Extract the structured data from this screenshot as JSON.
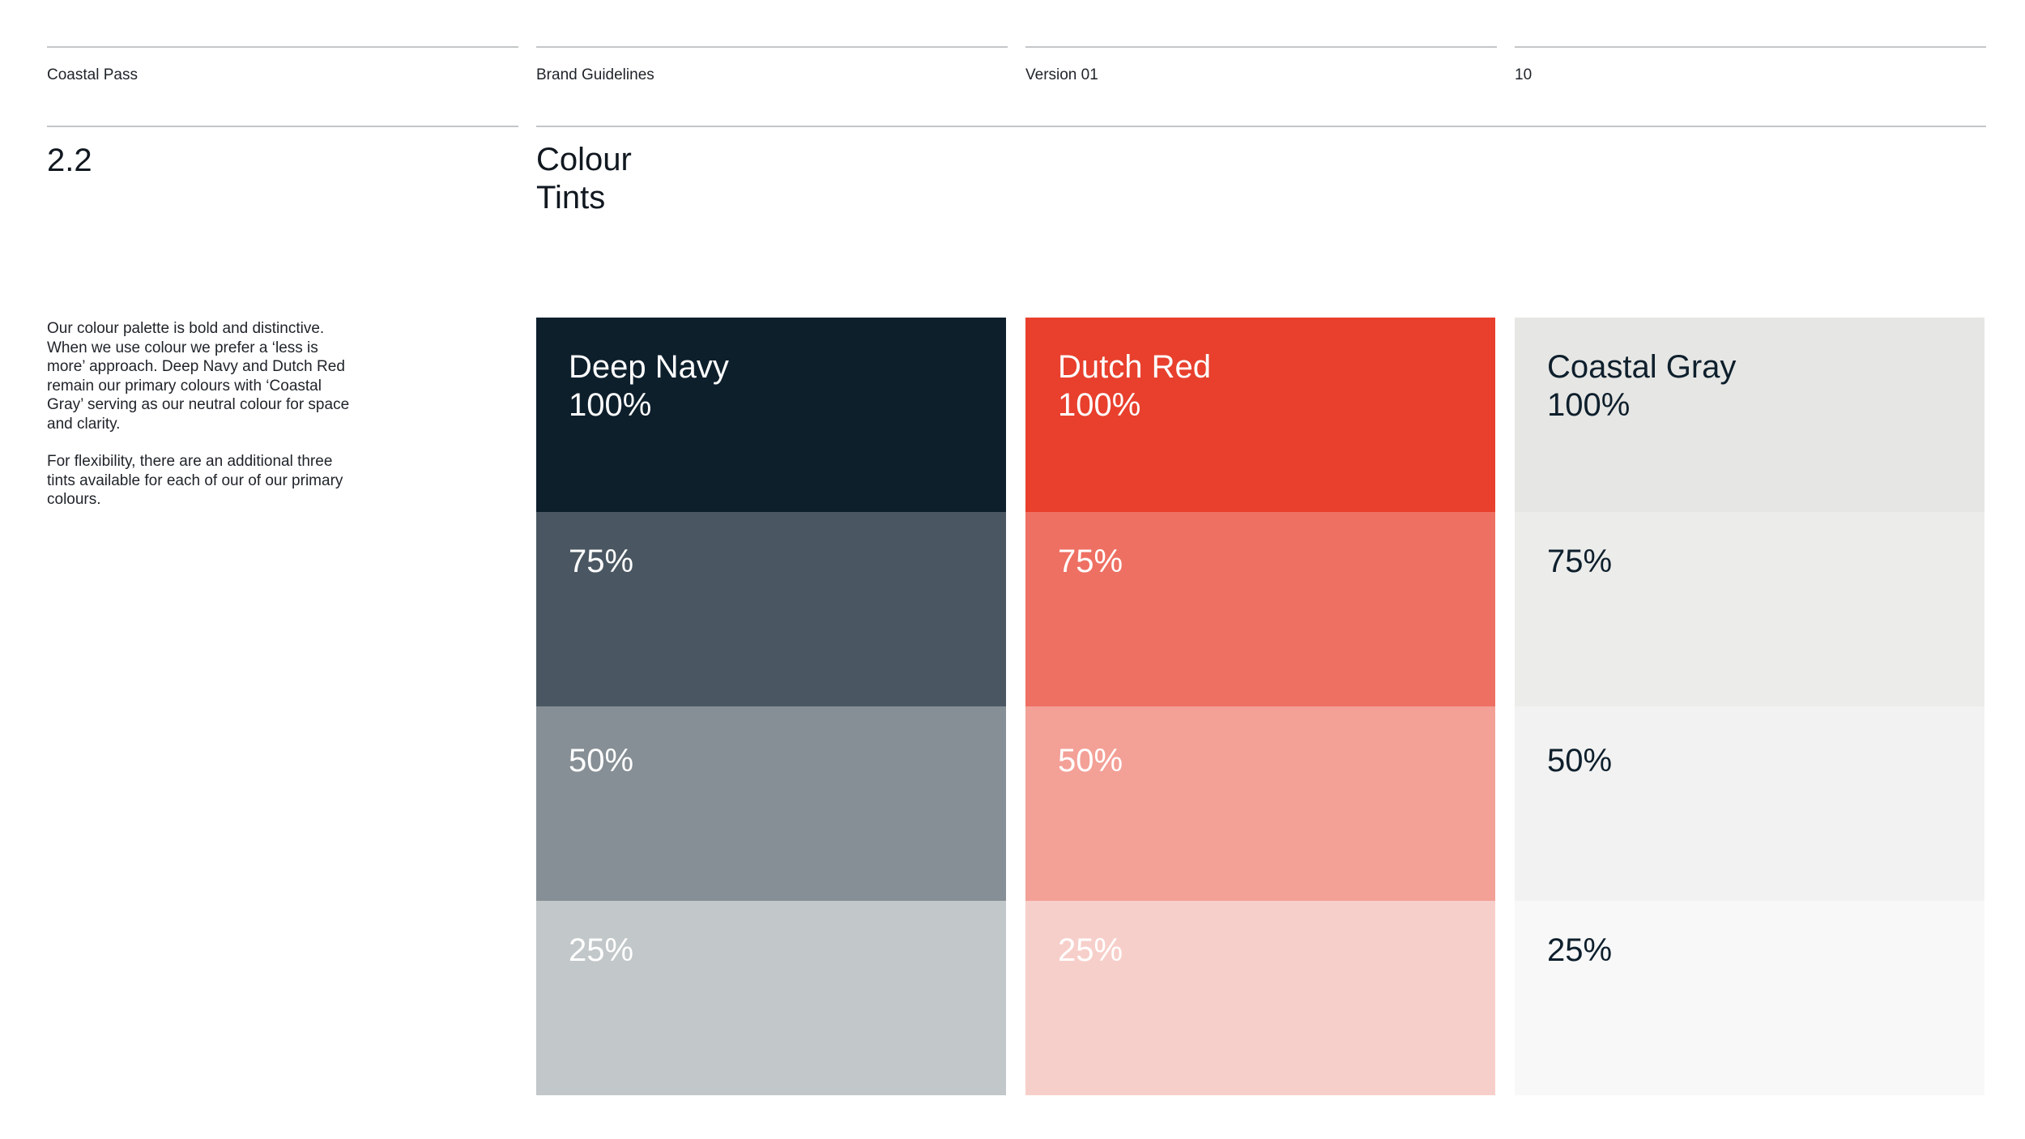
{
  "header": {
    "brand": "Coastal Pass",
    "document": "Brand Guidelines",
    "version": "Version 01",
    "page_number": "10"
  },
  "section": {
    "number": "2.2",
    "title_line1": "Colour",
    "title_line2": "Tints"
  },
  "intro": {
    "paragraph1": "Our colour palette is bold and distinctive. When we use colour we prefer a ‘less is more’ approach. Deep Navy and Dutch Red remain our primary colours with ‘Coastal Gray’ serving as our neutral colour for space and clarity.",
    "paragraph2": "For flexibility, there are an additional three tints available for each of our of our primary colours."
  },
  "colours": [
    {
      "name": "Deep Navy",
      "tints": [
        {
          "label": "100%",
          "color": "#0e1f2c",
          "text_color": "#ffffff"
        },
        {
          "label": "75%",
          "color": "#4a5762",
          "text_color": "#ffffff"
        },
        {
          "label": "50%",
          "color": "#868f95",
          "text_color": "#ffffff"
        },
        {
          "label": "25%",
          "color": "#c2c7c9",
          "text_color": "#ffffff"
        }
      ]
    },
    {
      "name": "Dutch Red",
      "tints": [
        {
          "label": "100%",
          "color": "#e8402d",
          "text_color": "#ffffff"
        },
        {
          "label": "75%",
          "color": "#ee7063",
          "text_color": "#ffffff"
        },
        {
          "label": "50%",
          "color": "#f3a097",
          "text_color": "#ffffff"
        },
        {
          "label": "25%",
          "color": "#f7cfca",
          "text_color": "#ffffff"
        }
      ]
    },
    {
      "name": "Coastal Gray",
      "tints": [
        {
          "label": "100%",
          "color": "#e6e6e4",
          "text_color": "#0e1f2c"
        },
        {
          "label": "75%",
          "color": "#ececeb",
          "text_color": "#0e1f2c"
        },
        {
          "label": "50%",
          "color": "#f2f2f2",
          "text_color": "#0e1f2c"
        },
        {
          "label": "25%",
          "color": "#f8f8f8",
          "text_color": "#0e1f2c"
        }
      ]
    }
  ]
}
